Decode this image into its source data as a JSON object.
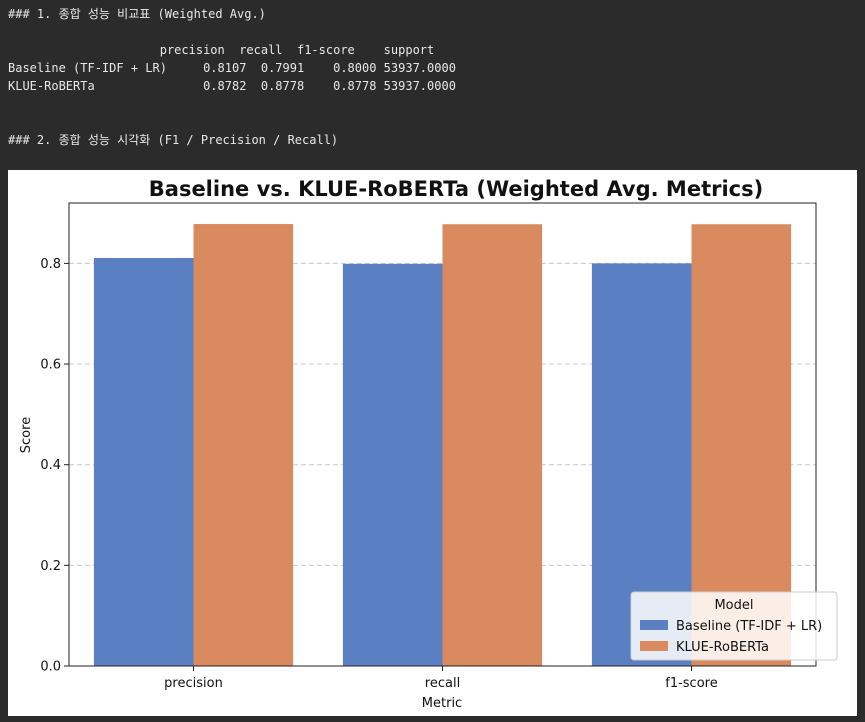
{
  "output": {
    "heading1": "### 1. 종합 성능 비교표 (Weighted Avg.)",
    "table": {
      "header": "                     precision  recall  f1-score    support",
      "rows": [
        "Baseline (TF-IDF + LR)     0.8107  0.7991    0.8000 53937.0000",
        "KLUE-RoBERTa               0.8782  0.8778    0.8778 53937.0000"
      ]
    },
    "heading2": "### 2. 종합 성능 시각화 (F1 / Precision / Recall)"
  },
  "chart_data": {
    "type": "bar",
    "title": "Baseline vs. KLUE-RoBERTa (Weighted Avg. Metrics)",
    "xlabel": "Metric",
    "ylabel": "Score",
    "categories": [
      "precision",
      "recall",
      "f1-score"
    ],
    "series": [
      {
        "name": "Baseline (TF-IDF + LR)",
        "values": [
          0.8107,
          0.7991,
          0.8
        ],
        "color": "#5b7fc3"
      },
      {
        "name": "KLUE-RoBERTa",
        "values": [
          0.8782,
          0.8778,
          0.8778
        ],
        "color": "#d98b5f"
      }
    ],
    "ylim": [
      0,
      0.92
    ],
    "yticks": [
      "0.0",
      "0.2",
      "0.4",
      "0.6",
      "0.8"
    ],
    "grid": "y-dashed",
    "legend": {
      "title": "Model",
      "placement": "lower-right"
    }
  }
}
